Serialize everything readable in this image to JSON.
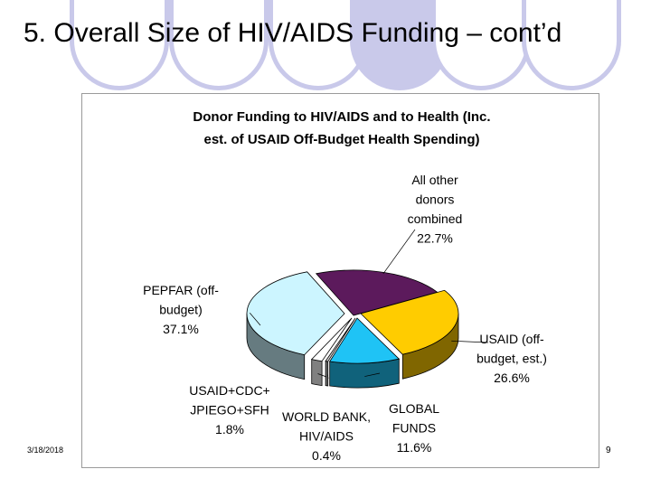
{
  "slide": {
    "title": "5. Overall Size of HIV/AIDS Funding – cont’d",
    "date": "3/18/2018",
    "page_number": "9",
    "decor_color": "#c9c9ea"
  },
  "chart_data": {
    "type": "pie",
    "title_lines": [
      "Donor Funding to HIV/AIDS and to Health (Inc.",
      "est. of USAID Off-Budget Health Spending)"
    ],
    "slices": [
      {
        "label_lines": [
          "All other",
          "donors",
          "combined"
        ],
        "percent_label": "22.7%",
        "value": 22.7,
        "color": "#5c1a5c"
      },
      {
        "label_lines": [
          "USAID (off-",
          "budget, est.)"
        ],
        "percent_label": "26.6%",
        "value": 26.6,
        "color": "#ffcc00"
      },
      {
        "label_lines": [
          "GLOBAL",
          "FUNDS"
        ],
        "percent_label": "11.6%",
        "value": 11.6,
        "color": "#1fc3f5"
      },
      {
        "label_lines": [
          "WORLD BANK,",
          "HIV/AIDS"
        ],
        "percent_label": "0.4%",
        "value": 0.4,
        "color": "#d9d9d9"
      },
      {
        "label_lines": [
          "USAID+CDC+",
          "JPIEGO+SFH"
        ],
        "percent_label": "1.8%",
        "value": 1.8,
        "color": "#ffffff"
      },
      {
        "label_lines": [
          "PEPFAR (off-",
          "budget)"
        ],
        "percent_label": "37.1%",
        "value": 37.1,
        "color": "#ccf5ff"
      }
    ]
  }
}
